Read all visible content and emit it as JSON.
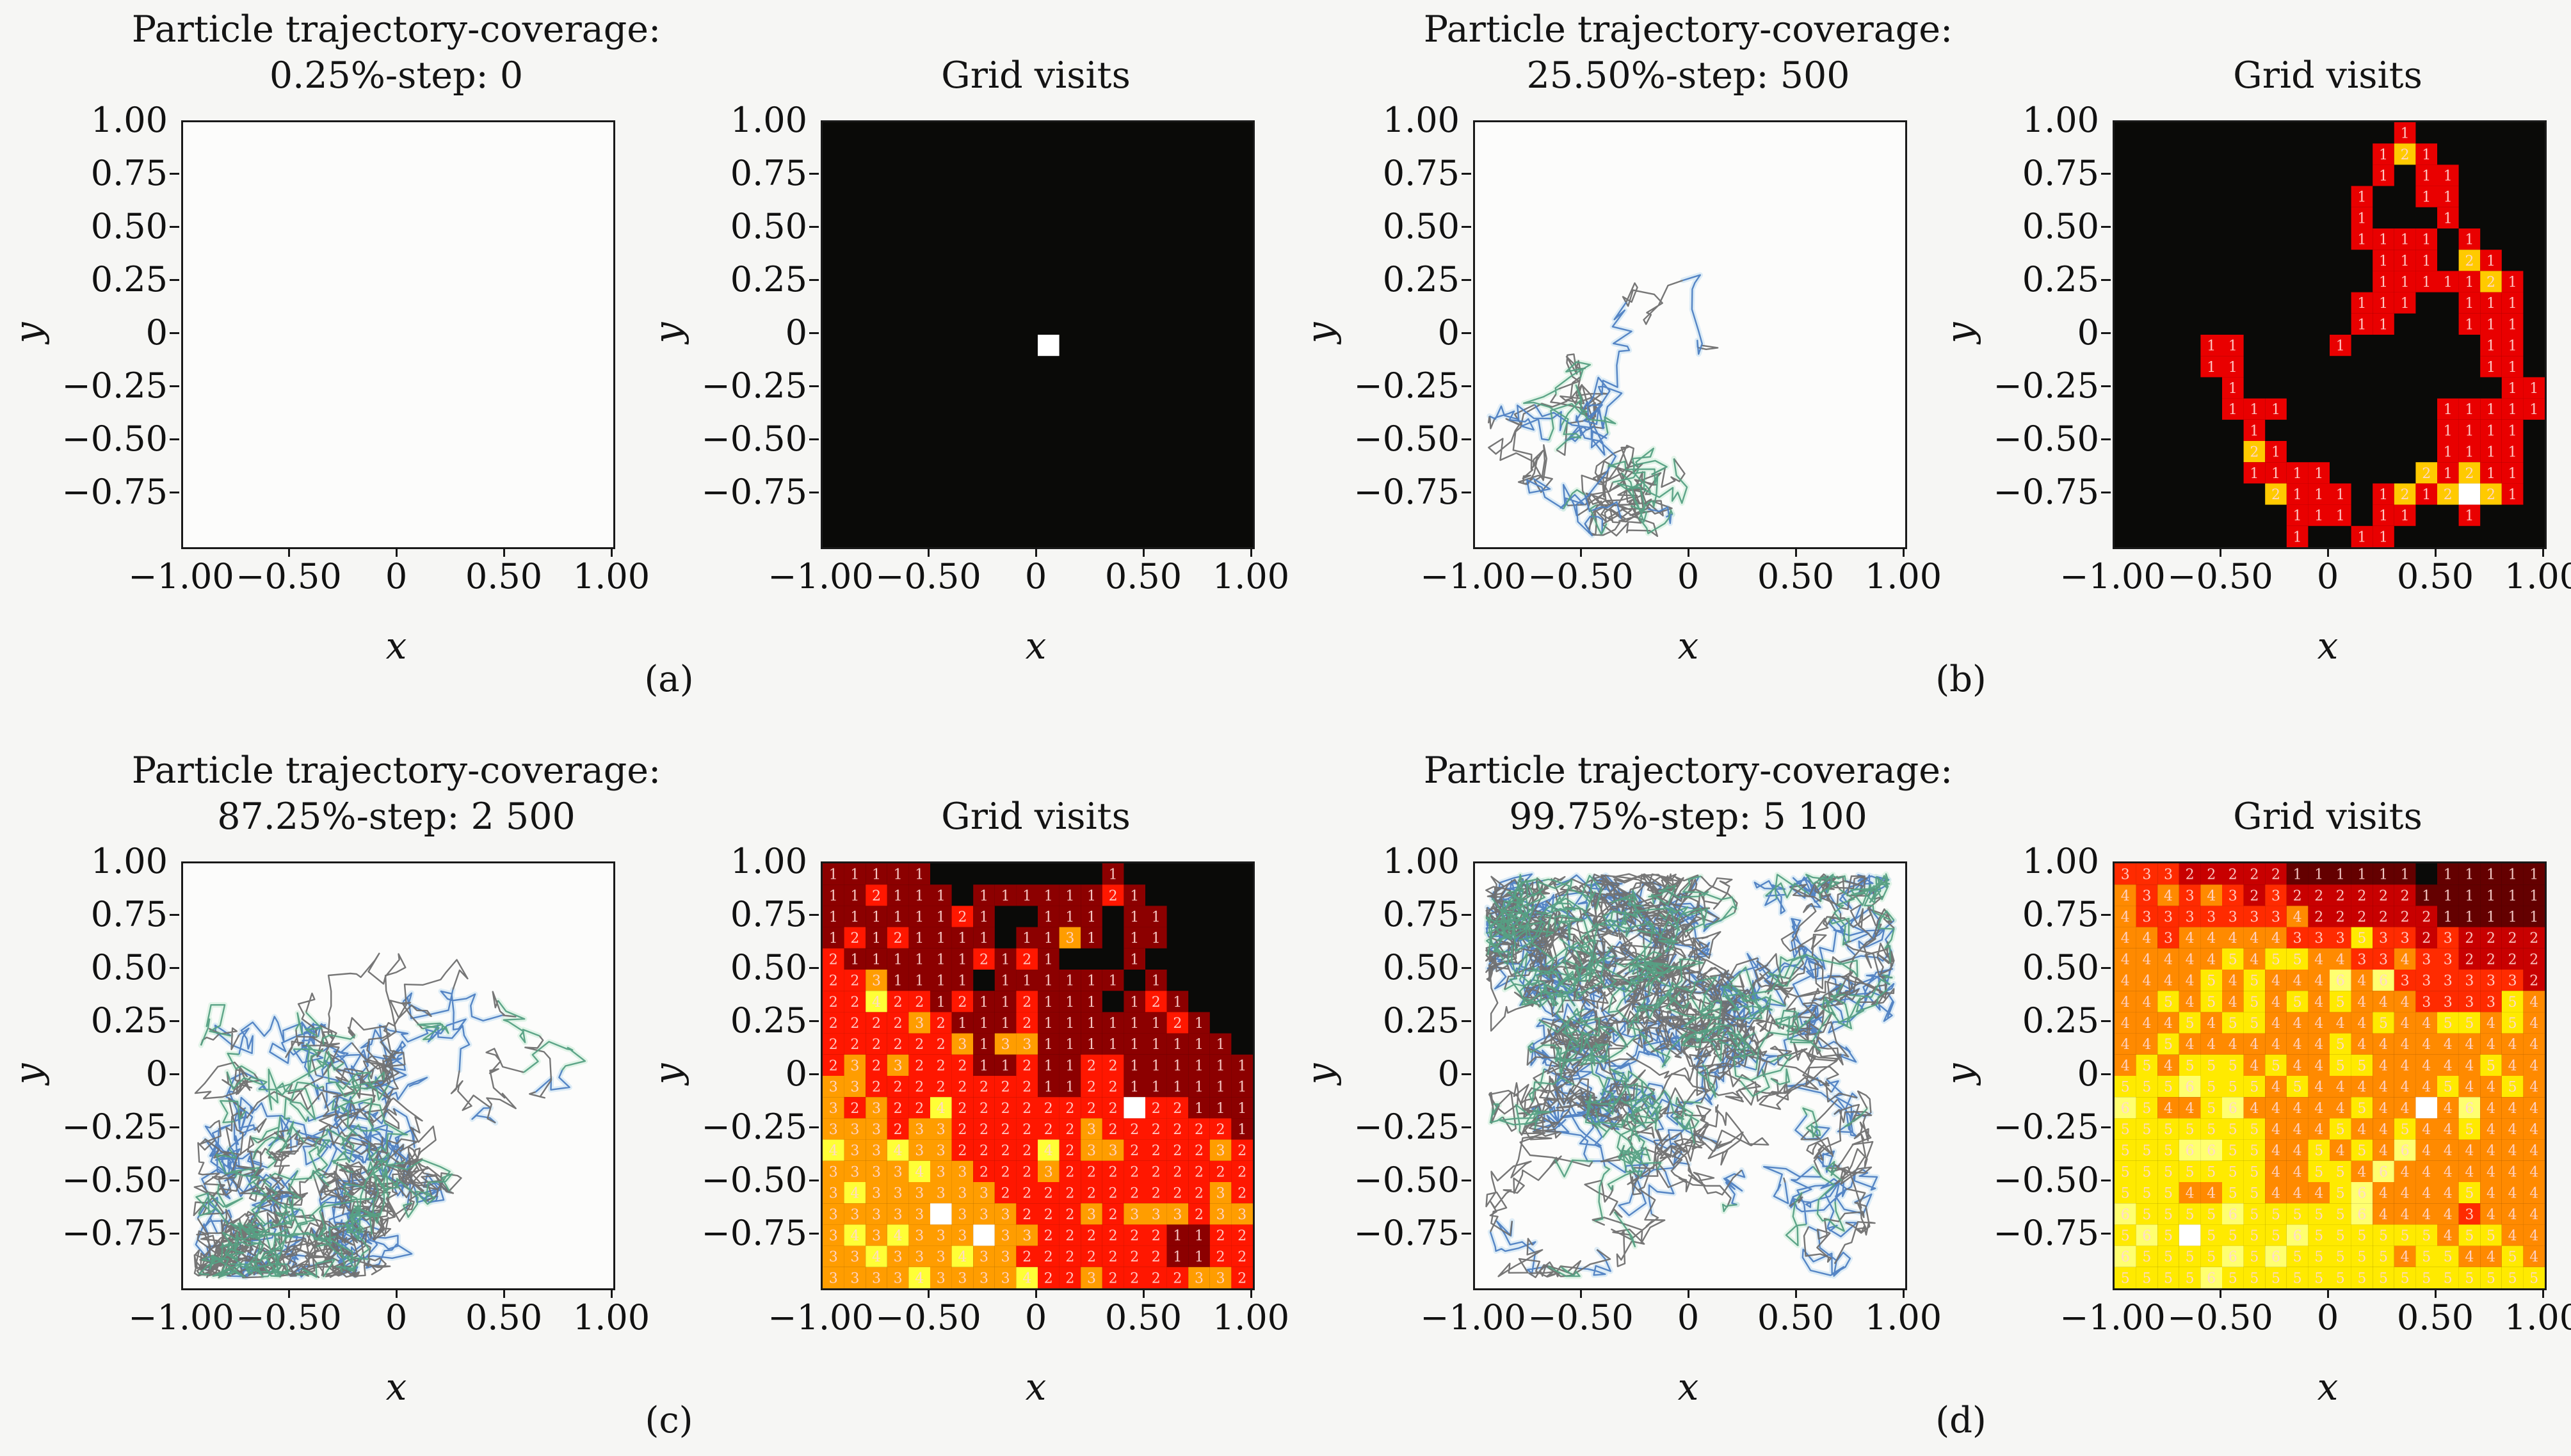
{
  "figure": {
    "background": "#f6f6f4",
    "colormap": "hot",
    "description": "Random-walk particle trajectory and grid-visit heatmaps at four simulation stages"
  },
  "captions": [
    "(a)",
    "(b)",
    "(c)",
    "(d)"
  ],
  "axes": {
    "xlabel": "x",
    "ylabel": "y",
    "xlim": [
      -1,
      1
    ],
    "ylim": [
      -1,
      1
    ],
    "xtick_labels": [
      "−1.00",
      "−0.50",
      "0",
      "0.50",
      "1.00"
    ],
    "xtick_values": [
      -1,
      -0.5,
      0,
      0.5,
      1
    ],
    "xtick_mark_values": [
      -0.5,
      0,
      0.5,
      1
    ],
    "ytick_labels": [
      "1.00",
      "0.75",
      "0.50",
      "0.25",
      "0",
      "−0.25",
      "−0.50",
      "−0.75"
    ],
    "ytick_values": [
      1,
      0.75,
      0.5,
      0.25,
      0,
      -0.25,
      -0.5,
      -0.75
    ],
    "ytick_mark_values": [
      0.75,
      0.5,
      0.25,
      0,
      -0.25,
      -0.5,
      -0.75
    ]
  },
  "trajectory_style": {
    "palette": [
      {
        "color": "#6f6f6f",
        "halo": null,
        "w": 0.5
      },
      {
        "color": "#4d80c2",
        "halo": "#c3def2",
        "w": 0.3
      },
      {
        "color": "#55a083",
        "halo": "#ccecd9",
        "w": 0.2
      }
    ],
    "line_width": 2.4,
    "halo_width": 8.5
  },
  "chart_data": [
    {
      "id": "a-trajectory",
      "panel": "a",
      "type": "line",
      "kind": "trajectory",
      "title_line1": "Particle trajectory-coverage:",
      "title_line2": "0.25%-step: 0",
      "coverage_pct": 0.25,
      "step": 0,
      "steps": 0,
      "seed": 3,
      "start": [
        0.05,
        -0.05
      ]
    },
    {
      "id": "a-grid",
      "panel": "a",
      "type": "heatmap",
      "title": "Grid visits",
      "grid_size": 20,
      "vmax": 1,
      "rows": [
        "00000000000000000000",
        "00000000000000000000",
        "00000000000000000000",
        "00000000000000000000",
        "00000000000000000000",
        "00000000000000000000",
        "00000000000000000000",
        "00000000000000000000",
        "00000000000000000000",
        "00000000000000000000",
        "00000000001000000000",
        "00000000000000000000",
        "00000000000000000000",
        "00000000000000000000",
        "00000000000000000000",
        "00000000000000000000",
        "00000000000000000000",
        "00000000000000000000",
        "00000000000000000000",
        "00000000000000000000"
      ]
    },
    {
      "id": "b-trajectory",
      "panel": "b",
      "type": "line",
      "kind": "trajectory",
      "title_line1": "Particle trajectory-coverage:",
      "title_line2": "25.50%-step: 500",
      "coverage_pct": 25.5,
      "step": 500,
      "steps": 500,
      "seed": 7,
      "start": [
        0.05,
        -0.05
      ]
    },
    {
      "id": "b-grid",
      "panel": "b",
      "type": "heatmap",
      "title": "Grid visits",
      "grid_size": 20,
      "vmax": 3,
      "rows": [
        "00000000000001000000",
        "00000000000012100000",
        "00000000000010110000",
        "00000000000100110000",
        "00000000000100010000",
        "00000000000111101000",
        "00000000000011102100",
        "00000000000011111210",
        "00000000000111001110",
        "00000000000110001110",
        "00001100001000000110",
        "00001100000000000110",
        "00000100000000000011",
        "00000111000000011111",
        "00000010000000011110",
        "00000021000000011110",
        "00000011110000212110",
        "00000002111012123210",
        "00000000111011001000",
        "00000000100110000000"
      ]
    },
    {
      "id": "c-trajectory",
      "panel": "c",
      "type": "line",
      "kind": "trajectory",
      "title_line1": "Particle trajectory-coverage:",
      "title_line2": "87.25%-step: 2 500",
      "coverage_pct": 87.25,
      "step": 2500,
      "steps": 2500,
      "seed": 13,
      "start": [
        0.05,
        -0.05
      ]
    },
    {
      "id": "c-grid",
      "panel": "c",
      "type": "heatmap",
      "title": "Grid visits",
      "grid_size": 20,
      "vmax": 5,
      "rows": [
        "11111000000001000000",
        "11211101111112100000",
        "11111121001110110000",
        "12121111011310110000",
        "21111112121000100000",
        "22311110111111010000",
        "22422121121110121000",
        "22223211121111112100",
        "22222231331111111110",
        "23232221121122111111",
        "33222222221122111111",
        "32322422222222522111",
        "33323322222232222221",
        "43343322224233222232",
        "33334332223222222222",
        "34333333222222222232",
        "33333533322232333233",
        "34343335332222221122",
        "33433343322222221122",
        "33334333342232222332"
      ]
    },
    {
      "id": "d-trajectory",
      "panel": "d",
      "type": "line",
      "kind": "trajectory",
      "title_line1": "Particle trajectory-coverage:",
      "title_line2": "99.75%-step: 5 100",
      "coverage_pct": 99.75,
      "step": 5100,
      "steps": 5100,
      "seed": 42,
      "start": [
        0.05,
        -0.05
      ]
    },
    {
      "id": "d-grid",
      "panel": "d",
      "type": "heatmap",
      "title": "Grid visits",
      "grid_size": 20,
      "vmax": 7,
      "rows": [
        "33322222111111011111",
        "43434323222222111111",
        "43333333422222211111",
        "44344444333533232222",
        "44444545544334332222",
        "44445454446463333332",
        "44545454545444333354",
        "44454554444454455454",
        "44544444445444444444",
        "45455545445544444544",
        "55565554544444454454",
        "65445644444544746444",
        "55555554445445445444",
        "55566554454546444444",
        "55555554455464444444",
        "55544554445644445444",
        "65555655555644443444",
        "56575555655555545544",
        "65555656555554554454",
        "55556555555555555555"
      ]
    }
  ]
}
